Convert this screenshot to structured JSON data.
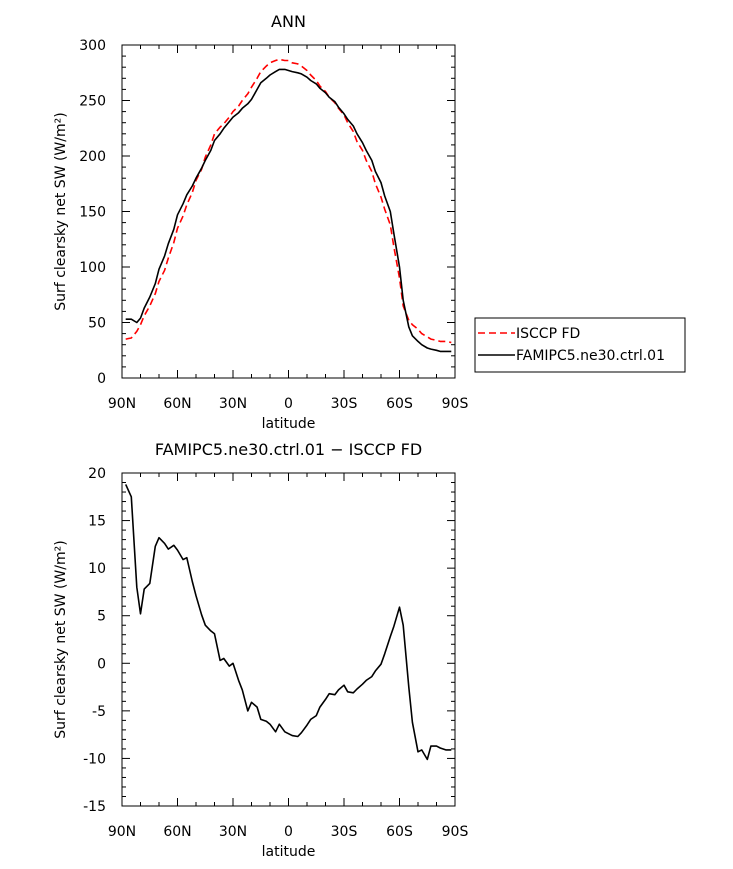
{
  "chart_data": [
    {
      "type": "line",
      "title": "ANN",
      "xlabel": "latitude",
      "ylabel": "Surf clearsky net SW (W/m²)",
      "x_tick_labels": [
        "90N",
        "60N",
        "30N",
        "0",
        "30S",
        "60S",
        "90S"
      ],
      "x_tick_values": [
        -90,
        -60,
        -30,
        0,
        30,
        60,
        90
      ],
      "xlim": [
        -90,
        90
      ],
      "ylim": [
        0,
        300
      ],
      "y_ticks": [
        0,
        50,
        100,
        150,
        200,
        250,
        300
      ],
      "legend_position": "right",
      "series": [
        {
          "name": "ISCCP FD",
          "color": "#ff0000",
          "dash": "dashed",
          "x": [
            -88,
            -85,
            -82,
            -80,
            -78,
            -75,
            -72,
            -70,
            -67,
            -65,
            -62,
            -60,
            -57,
            -55,
            -52,
            -50,
            -47,
            -45,
            -42,
            -40,
            -37,
            -35,
            -32,
            -30,
            -27,
            -25,
            -22,
            -20,
            -17,
            -15,
            -12,
            -10,
            -7,
            -5,
            -2,
            0,
            2,
            5,
            7,
            10,
            12,
            15,
            17,
            20,
            22,
            25,
            27,
            30,
            32,
            35,
            37,
            40,
            42,
            45,
            47,
            50,
            52,
            55,
            57,
            60,
            62,
            65,
            67,
            70,
            72,
            75,
            77,
            80,
            82,
            85,
            88
          ],
          "values": [
            35,
            36,
            42,
            48,
            56,
            65,
            76,
            87,
            97,
            108,
            122,
            135,
            146,
            156,
            167,
            178,
            188,
            199,
            210,
            220,
            226,
            229,
            235,
            240,
            245,
            250,
            256,
            262,
            270,
            276,
            281,
            284,
            286,
            287,
            286,
            286,
            284,
            283,
            281,
            277,
            273,
            268,
            263,
            258,
            253,
            248,
            243,
            237,
            230,
            222,
            213,
            205,
            196,
            186,
            175,
            163,
            152,
            138,
            118,
            90,
            65,
            52,
            48,
            44,
            40,
            37,
            35,
            34,
            33,
            33,
            32
          ]
        },
        {
          "name": "FAMIPC5.ne30.ctrl.01",
          "color": "#000000",
          "dash": "solid",
          "x": [
            -88,
            -85,
            -82,
            -80,
            -78,
            -75,
            -72,
            -70,
            -67,
            -65,
            -62,
            -60,
            -57,
            -55,
            -52,
            -50,
            -47,
            -45,
            -42,
            -40,
            -37,
            -35,
            -32,
            -30,
            -27,
            -25,
            -22,
            -20,
            -17,
            -15,
            -12,
            -10,
            -7,
            -5,
            -2,
            0,
            2,
            5,
            7,
            10,
            12,
            15,
            17,
            20,
            22,
            25,
            27,
            30,
            32,
            35,
            37,
            40,
            42,
            45,
            47,
            50,
            52,
            55,
            57,
            60,
            62,
            65,
            67,
            70,
            72,
            75,
            77,
            80,
            82,
            85,
            88
          ],
          "values": [
            53,
            53,
            50,
            54,
            63,
            73,
            85,
            98,
            110,
            121,
            134,
            147,
            157,
            165,
            173,
            180,
            189,
            196,
            205,
            214,
            220,
            225,
            231,
            235,
            239,
            243,
            247,
            251,
            260,
            266,
            270,
            273,
            276,
            278,
            278,
            277,
            276,
            275,
            274,
            271,
            268,
            265,
            261,
            257,
            253,
            249,
            244,
            238,
            233,
            227,
            220,
            212,
            205,
            196,
            186,
            176,
            164,
            150,
            130,
            100,
            70,
            46,
            38,
            33,
            30,
            27,
            26,
            25,
            24,
            24,
            24
          ]
        }
      ]
    },
    {
      "type": "line",
      "title": "FAMIPC5.ne30.ctrl.01 − ISCCP FD",
      "xlabel": "latitude",
      "ylabel": "Surf clearsky net SW (W/m²)",
      "x_tick_labels": [
        "90N",
        "60N",
        "30N",
        "0",
        "30S",
        "60S",
        "90S"
      ],
      "x_tick_values": [
        -90,
        -60,
        -30,
        0,
        30,
        60,
        90
      ],
      "xlim": [
        -90,
        90
      ],
      "ylim": [
        -15,
        20
      ],
      "y_ticks": [
        -15,
        -10,
        -5,
        0,
        5,
        10,
        15,
        20
      ],
      "series": [
        {
          "color": "#000000",
          "dash": "solid",
          "x": [
            -88,
            -85,
            -82,
            -80,
            -78,
            -75,
            -72,
            -70,
            -67,
            -65,
            -62,
            -60,
            -57,
            -55,
            -52,
            -50,
            -47,
            -45,
            -42,
            -40,
            -37,
            -35,
            -32,
            -30,
            -27,
            -25,
            -22,
            -20,
            -17,
            -15,
            -12,
            -10,
            -7,
            -5,
            -2,
            0,
            2,
            5,
            7,
            10,
            12,
            15,
            17,
            20,
            22,
            25,
            27,
            30,
            32,
            35,
            37,
            40,
            42,
            45,
            47,
            50,
            52,
            55,
            57,
            60,
            62,
            65,
            67,
            70,
            72,
            75,
            77,
            80,
            82,
            85,
            88
          ],
          "values": [
            18.8,
            17.5,
            8.0,
            5.2,
            7.8,
            8.4,
            12.3,
            13.2,
            12.6,
            12.0,
            12.4,
            11.9,
            10.9,
            11.1,
            8.6,
            7.1,
            5.1,
            4.0,
            3.4,
            3.1,
            0.3,
            0.5,
            -0.3,
            0.0,
            -1.8,
            -2.8,
            -5.0,
            -4.1,
            -4.6,
            -5.9,
            -6.1,
            -6.4,
            -7.2,
            -6.4,
            -7.2,
            -7.4,
            -7.6,
            -7.7,
            -7.3,
            -6.5,
            -5.9,
            -5.5,
            -4.6,
            -3.8,
            -3.2,
            -3.3,
            -2.8,
            -2.3,
            -3.0,
            -3.1,
            -2.7,
            -2.2,
            -1.8,
            -1.4,
            -0.8,
            -0.1,
            1.0,
            2.8,
            3.9,
            5.9,
            4.0,
            -2.5,
            -6.2,
            -9.3,
            -9.1,
            -10.1,
            -8.7,
            -8.7,
            -8.9,
            -9.1,
            -9.1
          ]
        }
      ]
    }
  ]
}
